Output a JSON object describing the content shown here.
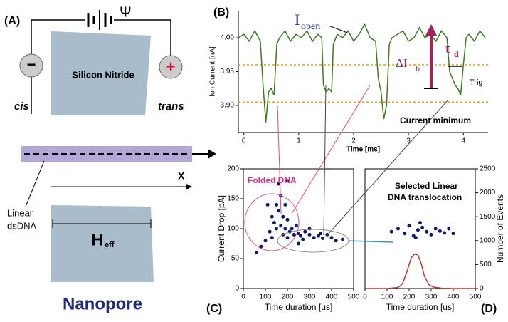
{
  "panel_labels": [
    "(A)",
    "(B)",
    "(C)",
    "(D)"
  ],
  "diagram": {
    "psi": "Ψ",
    "minus": "−",
    "plus": "+",
    "membrane": "Silicon Nitride",
    "cis": "cis",
    "trans": "trans",
    "x_axis": "X",
    "dna_label_1": "Linear",
    "dna_label_2": "dsDNA",
    "width": "H",
    "width_sub": "eff",
    "title": "Nanopore"
  },
  "chart_data": [
    {
      "type": "line",
      "x_label": "Time [ms]",
      "y_label": "Ion Current [nA]",
      "xlim": [
        -0.1,
        4.45
      ],
      "ylim": [
        3.86,
        4.04
      ],
      "xticks": [
        0,
        1,
        2,
        3,
        4
      ],
      "yticks": [
        {
          "value": 3.9,
          "label": "3.90"
        },
        {
          "value": 3.95,
          "label": "3.95"
        },
        {
          "value": 4.0,
          "label": "4.00"
        }
      ],
      "hlines": [
        3.96,
        3.905
      ],
      "hline_color": "#f39c12",
      "series": [
        {
          "color": "#3a7d1e",
          "x": [
            -0.1,
            0,
            0.1,
            0.2,
            0.3,
            0.35,
            0.4,
            0.45,
            0.5,
            0.55,
            0.6,
            0.65,
            0.75,
            0.85,
            0.95,
            1.05,
            1.15,
            1.25,
            1.35,
            1.42,
            1.45,
            1.5,
            1.55,
            1.6,
            1.63,
            1.7,
            1.8,
            1.9,
            2.0,
            2.1,
            2.2,
            2.3,
            2.4,
            2.45,
            2.5,
            2.55,
            2.6,
            2.65,
            2.7,
            2.8,
            2.9,
            3.0,
            3.1,
            3.2,
            3.3,
            3.4,
            3.5,
            3.6,
            3.7,
            3.75,
            3.8,
            3.85,
            3.9,
            3.95,
            4.0,
            4.05,
            4.1,
            4.2,
            4.3,
            4.4
          ],
          "values": [
            4.0,
            4.005,
            3.995,
            4.01,
            3.995,
            3.93,
            3.875,
            3.92,
            3.925,
            3.915,
            3.99,
            4.0,
            4.01,
            3.995,
            4.005,
            4.0,
            4.01,
            3.995,
            4.005,
            4.0,
            3.93,
            3.92,
            3.925,
            3.92,
            3.99,
            4.005,
            4.0,
            4.01,
            3.995,
            4.005,
            4.02,
            4.0,
            3.995,
            3.94,
            3.92,
            3.88,
            3.9,
            3.99,
            4.0,
            4.005,
            4.01,
            3.995,
            4.0,
            4.015,
            4.0,
            4.005,
            3.995,
            4.01,
            4.0,
            3.95,
            3.94,
            3.93,
            3.925,
            3.915,
            3.96,
            4.0,
            4.005,
            3.995,
            4.01,
            4.0
          ]
        }
      ],
      "annotations": {
        "open": "I",
        "open_sub": "open",
        "drop": "ΔI",
        "drop_sub": "b",
        "dwell": "t",
        "dwell_sub": "d",
        "trig": "Trig",
        "minimum": "Current minimum"
      }
    },
    {
      "type": "scatter",
      "frame": true,
      "x_label": "Time duration [us]",
      "y_label": "Current Drop [pA]",
      "xlim": [
        0,
        500
      ],
      "ylim": [
        0,
        200
      ],
      "xticks": [
        0,
        100,
        200,
        300,
        400,
        500
      ],
      "yticks": [
        0,
        50,
        100,
        150,
        200
      ],
      "series": [
        {
          "color": "#0d1a6e",
          "x": [
            60,
            80,
            100,
            120,
            130,
            140,
            150,
            150,
            160,
            170,
            170,
            180,
            190,
            190,
            200,
            210,
            220,
            230,
            240,
            250,
            260,
            280,
            300,
            320,
            340,
            360,
            380,
            400,
            420,
            450,
            160,
            200,
            110,
            130,
            250,
            300,
            200,
            180,
            270,
            350
          ],
          "values": [
            60,
            70,
            80,
            95,
            120,
            110,
            140,
            100,
            130,
            155,
            105,
            120,
            140,
            100,
            115,
            95,
            100,
            90,
            105,
            92,
            88,
            95,
            90,
            85,
            88,
            84,
            90,
            85,
            80,
            82,
            175,
            180,
            140,
            85,
            75,
            100,
            85,
            90,
            82,
            92
          ]
        }
      ],
      "annotations": {
        "folded": "Folded DNA"
      }
    },
    {
      "type": "scatter",
      "frame": true,
      "x_label": "Time duration [us]",
      "y2_label": "Number of Events",
      "xlim": [
        0,
        500
      ],
      "ylim": [
        0,
        200
      ],
      "y2lim": [
        0,
        2500
      ],
      "xticks": [
        0,
        100,
        200,
        300,
        400,
        500
      ],
      "y2ticks": [
        0,
        500,
        1000,
        1500,
        2000,
        2500
      ],
      "series": [
        {
          "color": "#0d1a6e",
          "x": [
            120,
            150,
            180,
            200,
            220,
            240,
            260,
            280,
            300,
            320,
            340,
            360,
            380,
            400,
            250,
            230
          ],
          "values": [
            95,
            100,
            92,
            105,
            88,
            98,
            102,
            95,
            90,
            100,
            96,
            93,
            100,
            92,
            110,
            85
          ]
        },
        {
          "type": "line",
          "axis": "y2",
          "color": "#c0392b",
          "x": [
            0,
            100,
            150,
            170,
            190,
            210,
            225,
            240,
            255,
            270,
            290,
            310,
            350,
            400,
            500
          ],
          "values": [
            0,
            0,
            20,
            100,
            350,
            650,
            720,
            700,
            520,
            250,
            80,
            30,
            5,
            0,
            0
          ]
        }
      ],
      "annotations": {
        "selected_1": "Selected Linear",
        "selected_2": "DNA translocation"
      }
    }
  ]
}
